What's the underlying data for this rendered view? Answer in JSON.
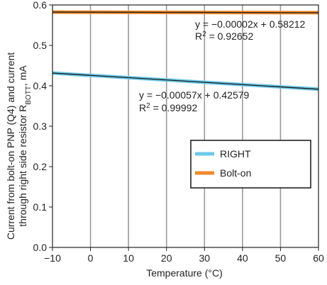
{
  "chart_data": {
    "type": "line",
    "xlabel": "Temperature (°C)",
    "ylabel_line1": "Current from bolt-on PNP (Q4) and current",
    "ylabel_line2_prefix": "through right side resistor R",
    "ylabel_line2_sub": "BOTT",
    "ylabel_line2_suffix": ", mA",
    "xlim": [
      -10,
      60
    ],
    "ylim": [
      0.0,
      0.6
    ],
    "x_ticks": [
      -10,
      0,
      10,
      20,
      30,
      40,
      50,
      60
    ],
    "x_tick_labels": [
      "−10",
      "0",
      "10",
      "20",
      "30",
      "40",
      "50",
      "60"
    ],
    "y_ticks": [
      0.0,
      0.1,
      0.2,
      0.3,
      0.4,
      0.5,
      0.6
    ],
    "y_tick_labels": [
      "0.0",
      "0.1",
      "0.2",
      "0.3",
      "0.4",
      "0.5",
      "0.6"
    ],
    "grid": "vertical",
    "legend_position": "center-right",
    "series": [
      {
        "name": "RIGHT",
        "color": "#6cc9e8",
        "x": [
          -10,
          60
        ],
        "y": [
          0.4315,
          0.3916
        ]
      },
      {
        "name": "Bolt-on",
        "color": "#f08a2c",
        "x": [
          -10,
          60
        ],
        "y": [
          0.5823,
          0.5809
        ]
      }
    ],
    "fits": [
      {
        "series": "Bolt-on",
        "equation": "y = −0.00002x + 0.58212",
        "r2_prefix": "R",
        "r2_sup": "2",
        "r2_value": " = 0.92652",
        "slope": -2e-05,
        "intercept": 0.58212
      },
      {
        "series": "RIGHT",
        "equation": "y = −0.00057x + 0.42579",
        "r2_prefix": "R",
        "r2_sup": "2",
        "r2_value": " = 0.99992",
        "slope": -0.00057,
        "intercept": 0.42579
      }
    ]
  }
}
